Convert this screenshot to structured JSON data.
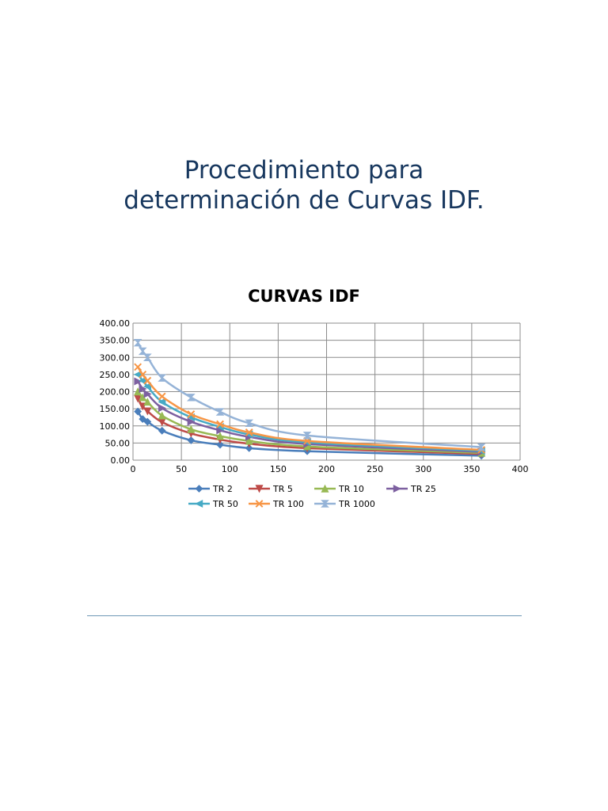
{
  "page": {
    "title_line1": "Procedimiento para",
    "title_line2": "determinación de Curvas IDF."
  },
  "chart_data": {
    "type": "line",
    "title": "CURVAS IDF",
    "xlabel": "",
    "ylabel": "",
    "xlim": [
      0,
      400
    ],
    "ylim": [
      0,
      400
    ],
    "x_ticks": [
      "0",
      "50",
      "100",
      "150",
      "200",
      "250",
      "300",
      "350",
      "400"
    ],
    "y_ticks": [
      "0.00",
      "50.00",
      "100.00",
      "150.00",
      "200.00",
      "250.00",
      "300.00",
      "350.00",
      "400.00"
    ],
    "grid": true,
    "legend_position": "bottom",
    "x": [
      5,
      10,
      15,
      30,
      60,
      90,
      120,
      180,
      360
    ],
    "series": [
      {
        "name": "TR 2",
        "color": "#4a7ebb",
        "marker": "diamond",
        "values": [
          142,
          120,
          112,
          86,
          58,
          45,
          35,
          26,
          13
        ]
      },
      {
        "name": "TR 5",
        "color": "#be4b48",
        "marker": "triangle-down",
        "values": [
          180,
          157,
          143,
          111,
          78,
          60,
          48,
          35,
          18
        ]
      },
      {
        "name": "TR 10",
        "color": "#98b954",
        "marker": "triangle-up",
        "values": [
          200,
          183,
          170,
          130,
          90,
          70,
          56,
          40,
          21
        ]
      },
      {
        "name": "TR 25",
        "color": "#7d60a0",
        "marker": "triangle-right",
        "values": [
          230,
          208,
          193,
          152,
          112,
          87,
          68,
          47,
          24
        ]
      },
      {
        "name": "TR 50",
        "color": "#46aac5",
        "marker": "triangle-left",
        "values": [
          250,
          232,
          215,
          170,
          125,
          97,
          75,
          52,
          27
        ]
      },
      {
        "name": "TR 100",
        "color": "#f79646",
        "marker": "x",
        "values": [
          272,
          250,
          232,
          186,
          134,
          105,
          81,
          56,
          30
        ]
      },
      {
        "name": "TR 1000",
        "color": "#95b3d7",
        "marker": "hourglass",
        "values": [
          343,
          318,
          300,
          240,
          183,
          141,
          108,
          72,
          38
        ]
      }
    ]
  }
}
